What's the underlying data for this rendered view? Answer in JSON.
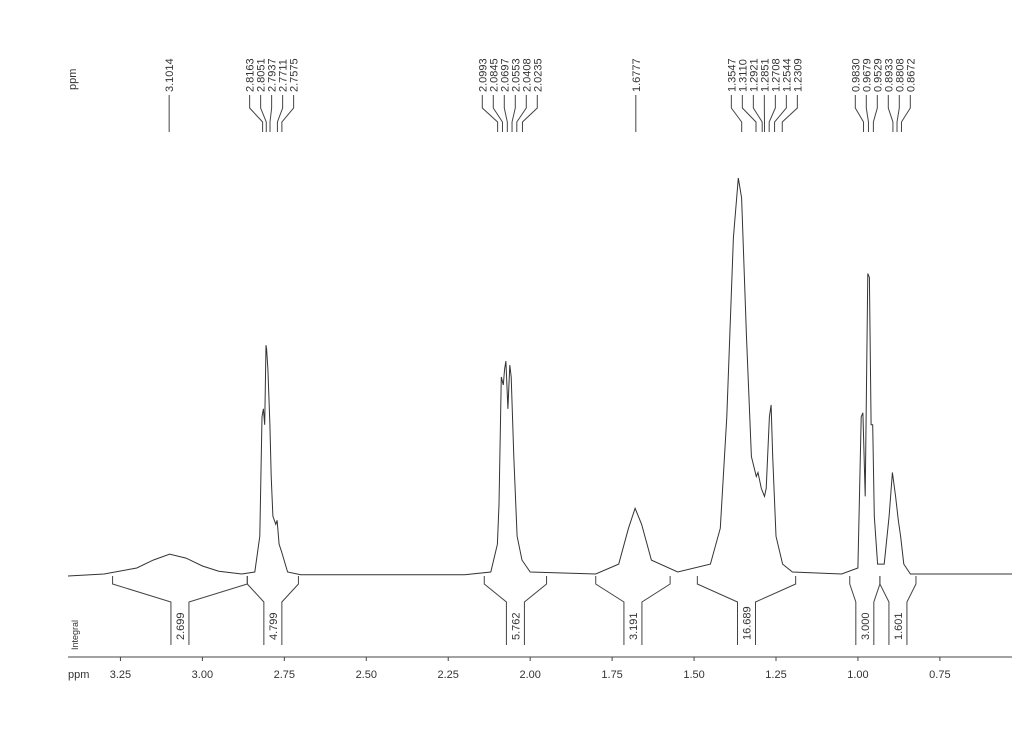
{
  "chart_data": {
    "type": "nmr",
    "peak_label_unit": "ppm",
    "xlabel": "ppm",
    "integral_label": "Integral",
    "xlim": [
      3.41,
      0.53
    ],
    "ylim": [
      0,
      100
    ],
    "xticks": [
      3.25,
      {
        "value": 3,
        "label": "3.00"
      },
      2.75,
      {
        "value": 2.5,
        "label": "2.50"
      },
      2.25,
      {
        "value": 2,
        "label": "2.00"
      },
      1.75,
      {
        "value": 1.5,
        "label": "1.50"
      },
      1.25,
      {
        "value": 1,
        "label": "1.00"
      },
      0.75
    ],
    "peaks": [
      3.1014,
      2.8163,
      2.8051,
      2.7937,
      2.7711,
      2.7575,
      2.0993,
      2.0845,
      2.0697,
      2.0553,
      2.0408,
      2.0235,
      1.6777,
      1.3547,
      1.311,
      1.2921,
      1.2851,
      1.2708,
      1.2544,
      1.2309,
      0.983,
      0.9679,
      0.9529,
      0.8933,
      0.8808,
      0.8672
    ],
    "peak_labels": [
      "3.1014",
      "2.8163",
      "2.8051",
      "2.7937",
      "2.7711",
      "2.7575",
      "2.0993",
      "2.0845",
      "2.0697",
      "2.0553",
      "2.0408",
      "2.0235",
      "1.6777",
      "1.3547",
      "1.3110",
      "1.2921",
      "1.2851",
      "1.2708",
      "1.2544",
      "1.2309",
      "0.9830",
      "0.9679",
      "0.9529",
      "0.8933",
      "0.8808",
      "0.8672"
    ],
    "integrals": {
      "values": [
        2.699,
        4.799,
        5.762,
        3.191,
        16.689,
        3,
        1.601
      ],
      "value_labels": [
        "2.699",
        "4.799",
        "5.762",
        "3.191",
        "16.689",
        "3.000",
        "1.601"
      ],
      "ranges": [
        [
          3.274,
          2.863
        ],
        [
          2.863,
          2.707
        ],
        [
          2.14,
          1.95
        ],
        [
          1.8,
          1.573
        ],
        [
          1.49,
          1.19
        ],
        [
          1.025,
          0.933
        ],
        [
          0.933,
          0.823
        ]
      ]
    },
    "color": "#333333",
    "x": [
      3.41,
      3.3,
      3.2,
      3.15,
      3.1,
      3.05,
      3.0,
      2.95,
      2.88,
      2.84,
      2.825,
      2.818,
      2.814,
      2.81,
      2.806,
      2.804,
      2.8,
      2.794,
      2.79,
      2.785,
      2.776,
      2.772,
      2.766,
      2.758,
      2.74,
      2.7,
      2.2,
      2.12,
      2.1,
      2.095,
      2.088,
      2.082,
      2.078,
      2.074,
      2.068,
      2.062,
      2.058,
      2.05,
      2.04,
      2.025,
      2.0,
      1.8,
      1.73,
      1.7,
      1.68,
      1.66,
      1.63,
      1.55,
      1.45,
      1.42,
      1.4,
      1.38,
      1.365,
      1.355,
      1.34,
      1.325,
      1.31,
      1.305,
      1.295,
      1.285,
      1.28,
      1.27,
      1.265,
      1.26,
      1.25,
      1.23,
      1.2,
      1.05,
      1.0,
      0.99,
      0.985,
      0.978,
      0.97,
      0.965,
      0.96,
      0.955,
      0.95,
      0.94,
      0.92,
      0.905,
      0.895,
      0.885,
      0.877,
      0.87,
      0.86,
      0.84,
      0.53
    ],
    "values": [
      0,
      0.5,
      2,
      4,
      5.5,
      4.5,
      2.5,
      1.2,
      0.5,
      1,
      10,
      40,
      42,
      38,
      58,
      57,
      52,
      38,
      25,
      15,
      13,
      14,
      8,
      6,
      1,
      0.3,
      0.3,
      1,
      8,
      18,
      50,
      48,
      52,
      54,
      42,
      53,
      50,
      30,
      10,
      4,
      1,
      0.5,
      3,
      12,
      17,
      13,
      4,
      1,
      3,
      12,
      40,
      85,
      100,
      95,
      60,
      30,
      25,
      26,
      22,
      20,
      22,
      40,
      43,
      30,
      10,
      3,
      1,
      0.5,
      2,
      40,
      41,
      20,
      76,
      75,
      38,
      38,
      15,
      3,
      3,
      15,
      26,
      20,
      14,
      10,
      3,
      0.5,
      0.5
    ]
  }
}
